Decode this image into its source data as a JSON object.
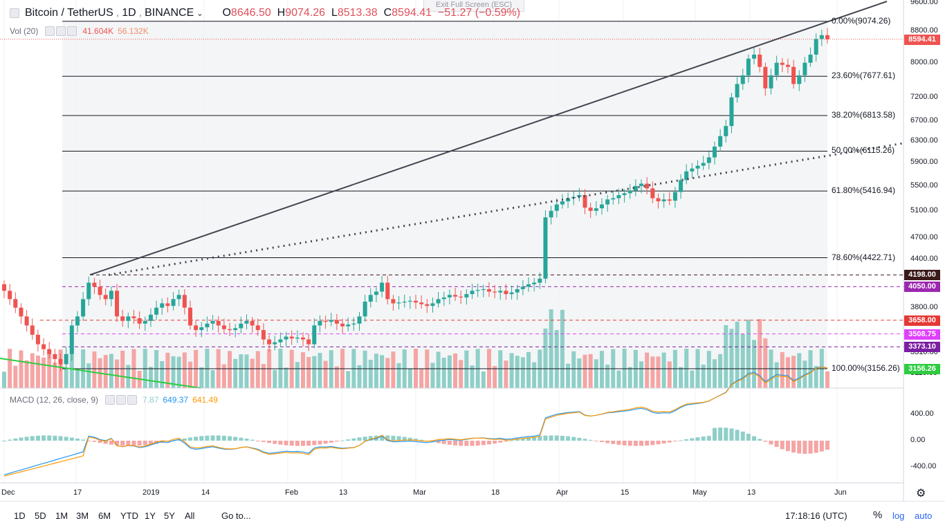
{
  "header": {
    "symbol": "Bitcoin / TetherUS",
    "interval": "1D",
    "exchange": "BINANCE",
    "open_label": "O",
    "open": "8646.50",
    "high_label": "H",
    "high": "9074.26",
    "low_label": "L",
    "low": "8513.38",
    "close_label": "C",
    "close": "8594.41",
    "change": "−51.27 (−0.59%)"
  },
  "exit_fullscreen": "Exit Full Screen (ESC)",
  "volume": {
    "label": "Vol (20)",
    "v1": "41.604K",
    "v2": "56.132K"
  },
  "macd": {
    "label": "MACD (12, 26, close, 9)",
    "hist": "7.87",
    "macd": "649.37",
    "signal": "641.49"
  },
  "price_axis": [
    "9600.00",
    "8800.00",
    "8000.00",
    "7200.00",
    "6700.00",
    "6300.00",
    "5900.00",
    "5500.00",
    "5100.00",
    "4700.00",
    "4400.00",
    "3800.00",
    "3310.00",
    "3110.00"
  ],
  "macd_axis": [
    "400.00",
    "0.00",
    "-400.00"
  ],
  "time_axis": [
    "Dec",
    "17",
    "2019",
    "14",
    "Feb",
    "13",
    "Mar",
    "18",
    "Apr",
    "15",
    "May",
    "13",
    "Jun"
  ],
  "fib_levels": [
    {
      "label": "0.00%(9074.26)",
      "price": 9074.26
    },
    {
      "label": "23.60%(7677.61)",
      "price": 7677.61
    },
    {
      "label": "38.20%(6813.58)",
      "price": 6813.58
    },
    {
      "label": "50.00%(6115.26)",
      "price": 6115.26
    },
    {
      "label": "61.80%(5416.94)",
      "price": 5416.94
    },
    {
      "label": "78.60%(4422.71)",
      "price": 4422.71
    },
    {
      "label": "100.00%(3156.26)",
      "price": 3156.26
    }
  ],
  "price_tags": [
    {
      "label": "8594.41",
      "color": "#ef5350"
    },
    {
      "label": "4198.00",
      "color": "#3b1a1a"
    },
    {
      "label": "4050.00",
      "color": "#9c27b0"
    },
    {
      "label": "3658.00",
      "color": "#e53935"
    },
    {
      "label": "3508.75",
      "color": "#e040fb"
    },
    {
      "label": "3373.10",
      "color": "#7b1fa2"
    },
    {
      "label": "3156.26",
      "color": "#2ecc40"
    }
  ],
  "timeframes": [
    "1D",
    "5D",
    "1M",
    "3M",
    "6M",
    "YTD",
    "1Y",
    "5Y",
    "All"
  ],
  "goto": "Go to...",
  "clock": "17:18:16 (UTC)",
  "pct": "%",
  "log": "log",
  "auto": "auto",
  "colors": {
    "up": "#26a69a",
    "down": "#ef5350",
    "vol_up": "#8fcfc8",
    "vol_down": "#f4a5a4",
    "macd_line": "#2196f3",
    "signal_line": "#ff9800"
  },
  "chart_data": {
    "type": "candlestick",
    "title": "Bitcoin / TetherUS 1D BINANCE",
    "closes": [
      4000,
      3900,
      3800,
      3700,
      3600,
      3500,
      3400,
      3350,
      3300,
      3250,
      3200,
      3300,
      3600,
      3700,
      3900,
      4100,
      4050,
      3950,
      3900,
      4000,
      3700,
      3650,
      3700,
      3680,
      3620,
      3650,
      3720,
      3800,
      3850,
      3820,
      3900,
      3950,
      3800,
      3600,
      3550,
      3580,
      3620,
      3650,
      3600,
      3560,
      3550,
      3570,
      3620,
      3650,
      3600,
      3550,
      3450,
      3400,
      3420,
      3450,
      3480,
      3460,
      3470,
      3450,
      3400,
      3600,
      3650,
      3640,
      3660,
      3620,
      3590,
      3610,
      3620,
      3700,
      3870,
      3950,
      3990,
      4100,
      3900,
      3850,
      3860,
      3870,
      3880,
      3860,
      3840,
      3820,
      3850,
      3900,
      3920,
      3950,
      3930,
      3920,
      3960,
      4000,
      4010,
      4020,
      3990,
      3980,
      4000,
      3960,
      3980,
      4020,
      4050,
      4080,
      4100,
      4150,
      5000,
      5100,
      5200,
      5250,
      5300,
      5320,
      5350,
      5150,
      5100,
      5140,
      5200,
      5280,
      5300,
      5350,
      5380,
      5420,
      5500,
      5540,
      5460,
      5300,
      5250,
      5280,
      5260,
      5400,
      5600,
      5750,
      5800,
      5850,
      5900,
      6000,
      6200,
      6400,
      6600,
      7200,
      7500,
      7700,
      8100,
      8200,
      7900,
      7400,
      7700,
      8000,
      7950,
      7900,
      7500,
      7700,
      8000,
      8200,
      8600,
      8700,
      8594
    ],
    "fib_retracement": {
      "high": 9074.26,
      "low": 3156.26
    }
  }
}
